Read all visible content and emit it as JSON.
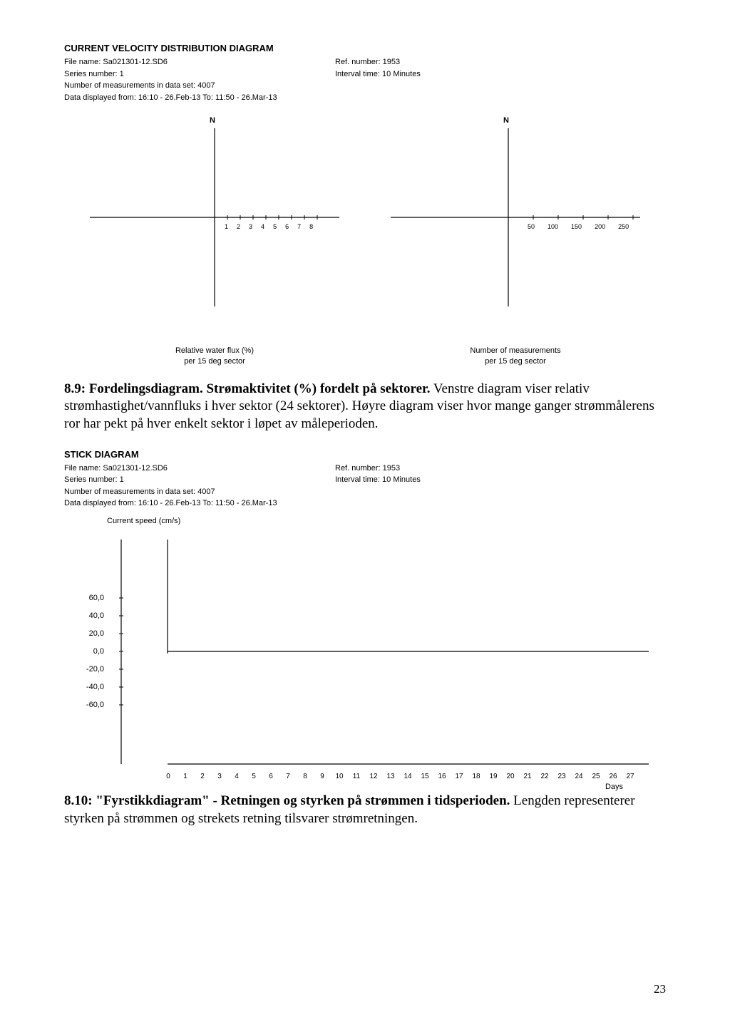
{
  "distribution": {
    "title": "CURRENT VELOCITY DISTRIBUTION DIAGRAM",
    "file_label": "File name: Sa021301-12.SD6",
    "ref_label": "Ref. number: 1953",
    "series_label": "Series number: 1",
    "interval_label": "Interval time: 10 Minutes",
    "measurements_label": "Number of measurements in data set: 4007",
    "displayed_label": "Data displayed from: 16:10 - 26.Feb-13   To: 11:50 - 26.Mar-13",
    "left_plot": {
      "north_label": "N",
      "ticks": [
        "1",
        "2",
        "3",
        "4",
        "5",
        "6",
        "7",
        "8"
      ],
      "sublabel_line1": "Relative water flux (%)",
      "sublabel_line2": "per 15 deg sector"
    },
    "right_plot": {
      "north_label": "N",
      "ticks": [
        "50",
        "100",
        "150",
        "200",
        "250"
      ],
      "sublabel_line1": "Number of measurements",
      "sublabel_line2": "per 15 deg sector"
    }
  },
  "caption1": {
    "bold": "8.9: Fordelingsdiagram. Strømaktivitet (%) fordelt på sektorer.",
    "rest": "Venstre diagram viser relativ strømhastighet/vannfluks i hver sektor (24 sektorer). Høyre diagram viser hvor mange ganger strømmålerens ror har pekt på hver enkelt sektor i løpet av måleperioden."
  },
  "stick": {
    "title": "STICK DIAGRAM",
    "file_label": "File name: Sa021301-12.SD6",
    "ref_label": "Ref. number: 1953",
    "series_label": "Series number: 1",
    "interval_label": "Interval time: 10 Minutes",
    "measurements_label": "Number of measurements in data set: 4007",
    "displayed_label": "Data displayed from: 16:10 - 26.Feb-13   To: 11:50 - 26.Mar-13",
    "axis_title": "Current speed (cm/s)",
    "y_ticks": [
      "60,0",
      "40,0",
      "20,0",
      "0,0",
      "-20,0",
      "-40,0",
      "-60,0"
    ],
    "x_ticks": [
      "0",
      "1",
      "2",
      "3",
      "4",
      "5",
      "6",
      "7",
      "8",
      "9",
      "10",
      "11",
      "12",
      "13",
      "14",
      "15",
      "16",
      "17",
      "18",
      "19",
      "20",
      "21",
      "22",
      "23",
      "24",
      "25",
      "26",
      "27"
    ],
    "x_label": "Days",
    "ylim": [
      -60,
      60
    ],
    "xlim": [
      0,
      27
    ]
  },
  "caption2": {
    "bold": "8.10: \"Fyrstikkdiagram\" - Retningen og styrken på strømmen i tidsperioden.",
    "rest": "Lengden representerer styrken på strømmen og strekets retning tilsvarer strømretningen."
  },
  "page_number": "23",
  "colors": {
    "axis": "#000000",
    "tick": "#000000",
    "text": "#000000"
  }
}
